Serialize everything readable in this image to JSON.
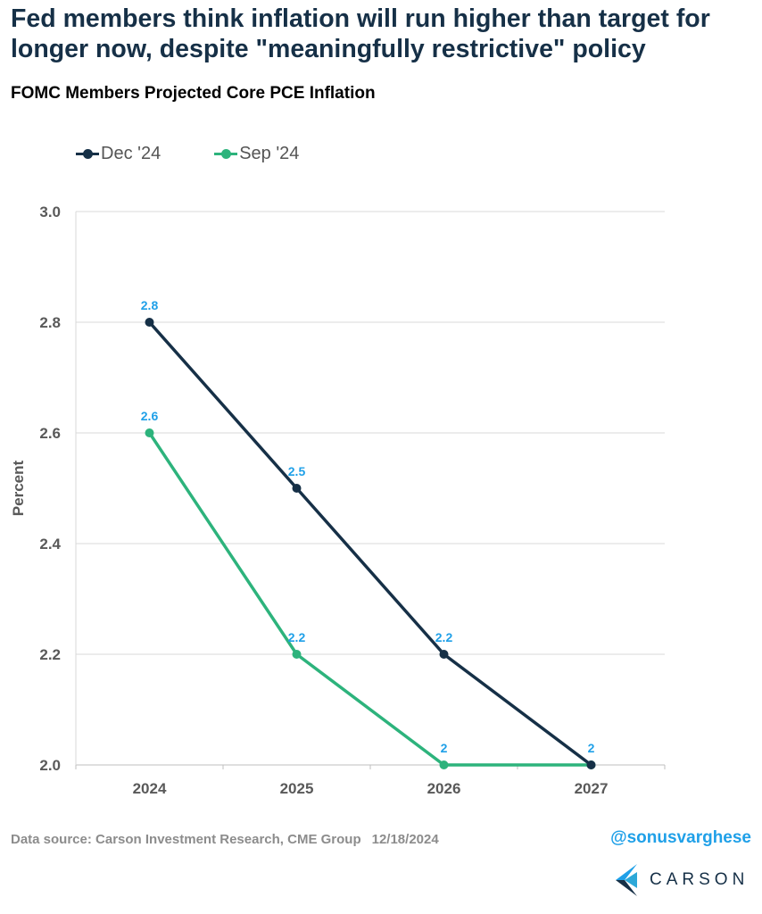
{
  "headline": "Fed members think inflation will run higher than target for longer now, despite \"meaningfully restrictive\" policy",
  "footer": {
    "source": "Data source: Carson Investment Research, CME Group",
    "date": "12/18/2024",
    "handle": "@sonusvarghese",
    "logo_text": "CARSON"
  },
  "colors": {
    "dec24": "#163047",
    "sep24": "#2db37c",
    "data_label": "#1fa0e8",
    "headline": "#163047"
  },
  "chart_data": {
    "type": "line",
    "title": "FOMC Members Projected Core PCE Inflation",
    "xlabel": "",
    "ylabel": "Percent",
    "categories": [
      "2024",
      "2025",
      "2026",
      "2027"
    ],
    "ylim": [
      2.0,
      3.0
    ],
    "yticks": [
      "2.0",
      "2.2",
      "2.4",
      "2.6",
      "2.8",
      "3.0"
    ],
    "grid": true,
    "legend_position": "top-left",
    "series": [
      {
        "name": "Dec '24",
        "values": [
          2.8,
          2.5,
          2.2,
          2.0
        ],
        "labels": [
          "2.8",
          "2.5",
          "2.2",
          "2"
        ]
      },
      {
        "name": "Sep '24",
        "values": [
          2.6,
          2.2,
          2.0,
          2.0
        ],
        "labels": [
          "2.6",
          "2.2",
          "2",
          ""
        ]
      }
    ]
  }
}
